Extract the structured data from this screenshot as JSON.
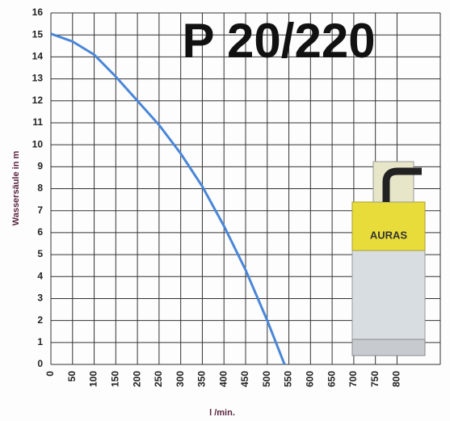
{
  "chart_data": {
    "type": "line",
    "title": "P 20/220",
    "x_label": "l /min.",
    "y_label": "Wassersäule in m",
    "pump_label": "AURAS",
    "x": [
      0,
      50,
      100,
      150,
      200,
      250,
      300,
      350,
      400,
      450,
      500,
      540
    ],
    "series": [
      {
        "color": "#4a86d8",
        "values": [
          15.05,
          14.7,
          14.1,
          13.1,
          12.0,
          10.9,
          9.6,
          8.1,
          6.3,
          4.3,
          2.0,
          0
        ]
      }
    ],
    "xlim": [
      0,
      900
    ],
    "xticks": [
      0,
      50,
      100,
      150,
      200,
      250,
      300,
      350,
      400,
      450,
      500,
      550,
      600,
      650,
      700,
      750,
      800
    ],
    "ylim": [
      0,
      16
    ],
    "yticks": [
      0,
      1,
      2,
      3,
      4,
      5,
      6,
      7,
      8,
      9,
      10,
      11,
      12,
      13,
      14,
      15,
      16
    ],
    "grid": true
  }
}
